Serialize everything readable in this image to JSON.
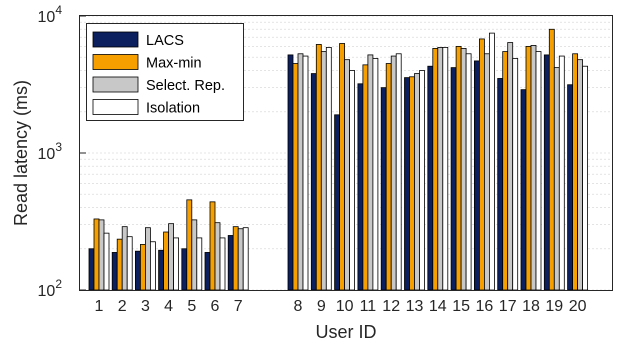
{
  "chart_data": {
    "type": "bar",
    "ylabel": "Read latency (ms)",
    "xlabel": "User ID",
    "yscale": "log",
    "ylim": [
      100,
      10000
    ],
    "grid": true,
    "legend_position": "top-left",
    "yticks": [
      {
        "value": 100,
        "base": "10",
        "exp": "2"
      },
      {
        "value": 1000,
        "base": "10",
        "exp": "3"
      },
      {
        "value": 10000,
        "base": "10",
        "exp": "4"
      }
    ],
    "categories": [
      "1",
      "2",
      "3",
      "4",
      "5",
      "6",
      "7",
      "8",
      "9",
      "10",
      "11",
      "12",
      "13",
      "14",
      "15",
      "16",
      "17",
      "18",
      "19",
      "20"
    ],
    "series": [
      {
        "name": "LACS",
        "color": "#0c1f5f",
        "values": [
          200,
          188,
          192,
          195,
          200,
          188,
          250,
          5200,
          3800,
          1900,
          3200,
          3000,
          3550,
          4300,
          4200,
          4700,
          3500,
          2900,
          5200,
          3150
        ]
      },
      {
        "name": "Max-min",
        "color": "#f5a000",
        "values": [
          330,
          235,
          215,
          265,
          455,
          440,
          290,
          4500,
          6200,
          6300,
          4400,
          4500,
          3600,
          5800,
          6000,
          6800,
          5500,
          6000,
          8000,
          5300
        ]
      },
      {
        "name": "Select. Rep.",
        "color": "#c8c8c8",
        "values": [
          325,
          290,
          285,
          305,
          325,
          310,
          280,
          5300,
          5500,
          4800,
          5200,
          5100,
          3800,
          5900,
          5800,
          5300,
          6400,
          6100,
          4200,
          4800
        ]
      },
      {
        "name": "Isolation",
        "color": "#ffffff",
        "values": [
          260,
          245,
          225,
          240,
          240,
          240,
          285,
          5100,
          5900,
          4000,
          4900,
          5300,
          4000,
          5900,
          5300,
          7500,
          4900,
          5500,
          5100,
          4300
        ]
      }
    ]
  }
}
